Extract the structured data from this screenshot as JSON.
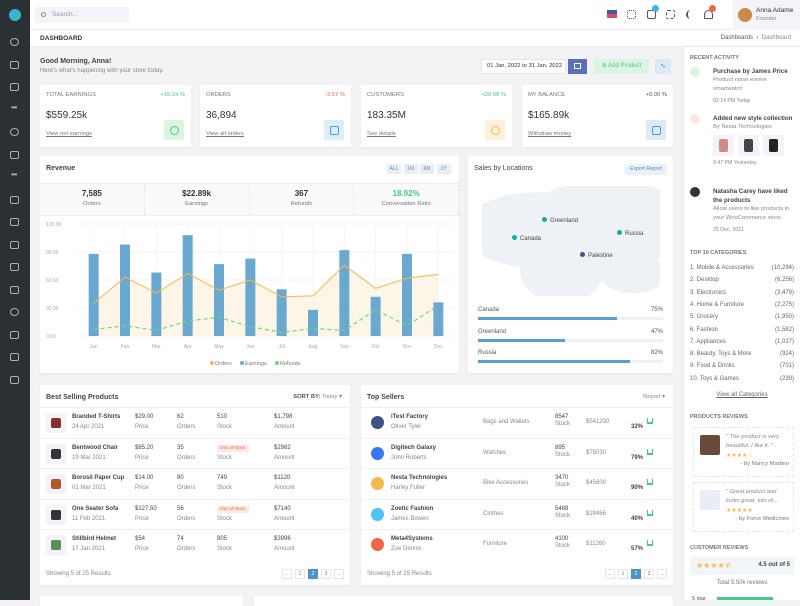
{
  "header": {
    "search_placeholder": "Search...",
    "user_name": "Anna Adame",
    "user_role": "Founder"
  },
  "breadcrumb": {
    "title": "DASHBOARD",
    "path": [
      "Dashboards",
      "Dashboard"
    ]
  },
  "greeting": {
    "title": "Good Morning, Anna!",
    "subtitle": "Here's what's happening with your store today.",
    "date_range": "01 Jan, 2022 to 31 Jan, 2022",
    "add_product": "Add Product"
  },
  "stats": [
    {
      "label": "TOTAL EARNINGS",
      "change": "+16.24 %",
      "dir": "up",
      "value": "$559.25k",
      "link": "View net earnings",
      "color": "#45cb85",
      "bg": "#dcf5e2",
      "icon": "dollar-circle-icon"
    },
    {
      "label": "ORDERS",
      "change": "-3.57 %",
      "dir": "down",
      "value": "36,894",
      "link": "View all orders",
      "color": "#4c9ad5",
      "bg": "#dceef9",
      "icon": "shopping-bag-icon"
    },
    {
      "label": "CUSTOMERS",
      "change": "+29.08 %",
      "dir": "up",
      "value": "183.35M",
      "link": "See details",
      "color": "#f7b84b",
      "bg": "#fdf1dc",
      "icon": "user-circle-icon"
    },
    {
      "label": "MY BALANCE",
      "change": "+0.00 %",
      "dir": "flat",
      "value": "$165.89k",
      "link": "Withdraw money",
      "color": "#4c9ad5",
      "bg": "#dceaf5",
      "icon": "wallet-icon"
    }
  ],
  "revenue": {
    "title": "Revenue",
    "ranges": [
      "ALL",
      "1M",
      "6M",
      "1Y"
    ],
    "kpis": [
      {
        "value": "7,585",
        "label": "Orders"
      },
      {
        "value": "$22.89k",
        "label": "Earnings"
      },
      {
        "value": "367",
        "label": "Refunds"
      },
      {
        "value": "18.92%",
        "label": "Conversation Ratio"
      }
    ]
  },
  "chart_data": {
    "type": "bar",
    "categories": [
      "Jan",
      "Feb",
      "Mar",
      "Apr",
      "May",
      "Jun",
      "Jul",
      "Aug",
      "Sep",
      "Oct",
      "Nov",
      "Dec"
    ],
    "ylim": [
      0,
      120
    ],
    "yticks": [
      "0.00",
      "30.00",
      "60.00",
      "90.00",
      "120.00"
    ],
    "grid": true,
    "legend": "bottom",
    "series": [
      {
        "name": "Orders",
        "type": "area",
        "color": "#f7b84b",
        "values": [
          35,
          63,
          46,
          67,
          49,
          60,
          42,
          43,
          76,
          51,
          62,
          66
        ]
      },
      {
        "name": "Earnings",
        "type": "bar",
        "color": "#6aa8d0",
        "values": [
          88,
          98,
          68,
          108,
          77,
          83,
          50,
          28,
          92,
          42,
          88,
          36
        ]
      },
      {
        "name": "Refunds",
        "type": "line-dashed",
        "color": "#6ada7d",
        "values": [
          7,
          11,
          6,
          16,
          20,
          10,
          4,
          8,
          6,
          28,
          11,
          33
        ]
      }
    ]
  },
  "sales_locations": {
    "title": "Sales by Locations",
    "export": "Export Report",
    "markers": [
      "Greenland",
      "Canada",
      "Russia",
      "Palestine"
    ],
    "bars": [
      {
        "name": "Canada",
        "pct": "75%",
        "value": 75
      },
      {
        "name": "Greenland",
        "pct": "47%",
        "value": 47
      },
      {
        "name": "Russia",
        "pct": "82%",
        "value": 82
      }
    ]
  },
  "best_selling": {
    "title": "Best Selling Products",
    "sort_label": "SORT BY:",
    "sort_value": "Today",
    "rows": [
      {
        "name": "Branded T-Shirts",
        "date": "24 Apr 2021",
        "price": "$29.00",
        "orders": "62",
        "stock": "510",
        "amount": "$1,798"
      },
      {
        "name": "Bentwood Chair",
        "date": "19 Mar 2021",
        "price": "$85.20",
        "orders": "35",
        "stock": "Out of stock",
        "amount": "$2982"
      },
      {
        "name": "Borosil Paper Cup",
        "date": "01 Mar 2021",
        "price": "$14.00",
        "orders": "80",
        "stock": "749",
        "amount": "$1120"
      },
      {
        "name": "One Seater Sofa",
        "date": "11 Feb 2021",
        "price": "$127.50",
        "orders": "56",
        "stock": "Out of stock",
        "amount": "$7140"
      },
      {
        "name": "Stillbird Helmet",
        "date": "17 Jan 2021",
        "price": "$54",
        "orders": "74",
        "stock": "805",
        "amount": "$3996"
      }
    ],
    "labels": {
      "price": "Price",
      "orders": "Orders",
      "stock": "Stock",
      "amount": "Amount"
    },
    "footer": "Showing 5 of 25 Results",
    "pages": [
      "←",
      "1",
      "2",
      "3",
      "→"
    ]
  },
  "top_sellers": {
    "title": "Top Sellers",
    "report": "Report",
    "rows": [
      {
        "name": "iTest Factory",
        "person": "Oliver Tyler",
        "category": "Bags and Wallets",
        "stock": "8547",
        "amount": "$541200",
        "pct": "32%",
        "color": "#405189"
      },
      {
        "name": "Digitech Galaxy",
        "person": "John Roberts",
        "category": "Watches",
        "stock": "895",
        "amount": "$75030",
        "pct": "79%",
        "color": "#3577f1"
      },
      {
        "name": "Nesta Technologies",
        "person": "Harley Fuller",
        "category": "Bike Accessories",
        "stock": "3470",
        "amount": "$45600",
        "pct": "90%",
        "color": "#f7b84b"
      },
      {
        "name": "Zoetic Fashion",
        "person": "James Bowen",
        "category": "Clothes",
        "stock": "5488",
        "amount": "$29456",
        "pct": "40%",
        "color": "#4cc3f1"
      },
      {
        "name": "Meta4Systems",
        "person": "Zoe Dennis",
        "category": "Furniture",
        "stock": "4100",
        "amount": "$11260",
        "pct": "57%",
        "color": "#f06548"
      }
    ],
    "stock_label": "Stock",
    "footer": "Showing 5 of 25 Results",
    "pages": [
      "←",
      "1",
      "2",
      "3",
      "→"
    ]
  },
  "right_panel": {
    "recent_title": "RECENT ACTIVITY",
    "activities": [
      {
        "title": "Purchase by James Price",
        "desc": "Product noise evolve smartwatch",
        "time": "02:14 PM Today"
      },
      {
        "title": "Added new style collection",
        "desc": "By Nesta Technologies",
        "time": "9:47 PM Yesterday"
      },
      {
        "title": "Natasha Carey have liked the products",
        "desc": "Allow users to like products in your WooCommerce store.",
        "time": "25 Dec, 2021"
      }
    ],
    "categories_title": "TOP 10 CATEGORIES",
    "categories": [
      {
        "name": "1. Mobile & Accessories",
        "count": "(10,294)"
      },
      {
        "name": "2. Desktop",
        "count": "(6,256)"
      },
      {
        "name": "3. Electronics",
        "count": "(3,479)"
      },
      {
        "name": "4. Home & Furniture",
        "count": "(2,275)"
      },
      {
        "name": "5. Grocery",
        "count": "(1,950)"
      },
      {
        "name": "6. Fashion",
        "count": "(1,582)"
      },
      {
        "name": "7. Appliances",
        "count": "(1,037)"
      },
      {
        "name": "8. Beauty, Toys & More",
        "count": "(924)"
      },
      {
        "name": "9. Food & Drinks",
        "count": "(701)"
      },
      {
        "name": "10. Toys & Games",
        "count": "(239)"
      }
    ],
    "view_all": "View all Categories",
    "reviews_title": "PRODUCTS REVIEWS",
    "reviews": [
      {
        "quote": "\" The product is very beautiful. I like it. \"",
        "stars": "★★★★☆",
        "by": "- by Nancy Martino"
      },
      {
        "quote": "\" Great product and looks great, lots of...",
        "stars": "★★★★★",
        "by": "- by Force Medicines"
      }
    ],
    "customer_title": "CUSTOMER REVIEWS",
    "rating": "4.5 out of 5",
    "rating_stars": "★★★★⯪",
    "total": "Total 5.50k reviews",
    "five_star": "5 star"
  }
}
